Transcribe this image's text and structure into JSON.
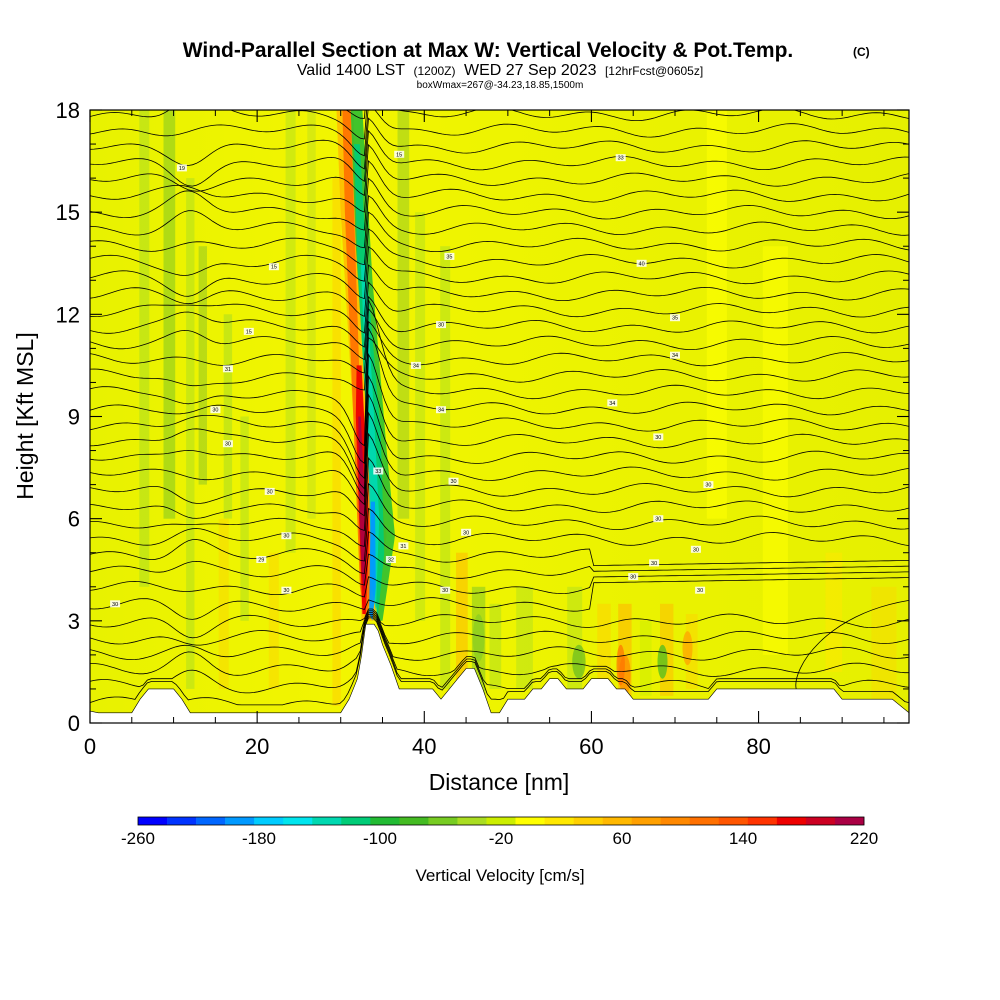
{
  "chart_data": {
    "type": "heatmap",
    "title": "Wind-Parallel Section at Max W: Vertical Velocity & Pot.Temp.",
    "title_mark": "(C)",
    "subtitle_valid": "Valid 1400 LST",
    "subtitle_utc": "(1200Z)",
    "subtitle_date": "WED 27 Sep 2023",
    "subtitle_fcst": "[12hrFcst@0605z]",
    "subtitle_box": "boxWmax=267@-34.23,18.85,1500m",
    "xlabel": "Distance [nm]",
    "ylabel": "Height [Kft MSL]",
    "xlim": [
      0,
      98
    ],
    "ylim": [
      0,
      18
    ],
    "x_ticks": [
      0,
      20,
      40,
      60,
      80
    ],
    "x_tick_labels": [
      "0",
      "20",
      "40",
      "60",
      "80"
    ],
    "y_ticks": [
      0,
      3,
      6,
      9,
      12,
      15,
      18
    ],
    "y_tick_labels": [
      "0",
      "3",
      "6",
      "9",
      "12",
      "15",
      "18"
    ],
    "colorbar": {
      "title": "Vertical Velocity [cm/s]",
      "min": -260,
      "max": 220,
      "step": 20,
      "labels": [
        "-260",
        "-180",
        "-100",
        "-20",
        "60",
        "140",
        "220"
      ],
      "colors": [
        "#0000ff",
        "#0033ff",
        "#0066ff",
        "#0099ff",
        "#00ccff",
        "#00e5ee",
        "#00d8b0",
        "#00cc77",
        "#22bb33",
        "#44bb22",
        "#77cc22",
        "#aadd22",
        "#ccee00",
        "#ffff00",
        "#ffe800",
        "#ffd000",
        "#ffb800",
        "#ffa000",
        "#ff8800",
        "#ff7000",
        "#ff5500",
        "#ff3300",
        "#ee0000",
        "#cc0022",
        "#aa0044"
      ]
    },
    "terrain_profile": [
      [
        0,
        0.35
      ],
      [
        1,
        0.3
      ],
      [
        2,
        0.3
      ],
      [
        3,
        0.3
      ],
      [
        4,
        0.3
      ],
      [
        5,
        0.3
      ],
      [
        6,
        0.7
      ],
      [
        7,
        1.0
      ],
      [
        8,
        1.0
      ],
      [
        9,
        1.0
      ],
      [
        10,
        1.0
      ],
      [
        11,
        0.7
      ],
      [
        12,
        0.3
      ],
      [
        14,
        0.3
      ],
      [
        16,
        0.3
      ],
      [
        18,
        0.3
      ],
      [
        20,
        0.3
      ],
      [
        22,
        0.3
      ],
      [
        24,
        0.3
      ],
      [
        26,
        0.3
      ],
      [
        28,
        0.3
      ],
      [
        30,
        0.3
      ],
      [
        31,
        0.7
      ],
      [
        32,
        1.3
      ],
      [
        32.5,
        2.0
      ],
      [
        33,
        2.9
      ],
      [
        34,
        2.9
      ],
      [
        34.5,
        2.7
      ],
      [
        35,
        2.3
      ],
      [
        36,
        1.7
      ],
      [
        37,
        1.0
      ],
      [
        38,
        1.0
      ],
      [
        39,
        1.0
      ],
      [
        40,
        1.0
      ],
      [
        41,
        1.0
      ],
      [
        42,
        0.7
      ],
      [
        43,
        1.0
      ],
      [
        44,
        1.3
      ],
      [
        45,
        1.6
      ],
      [
        46,
        1.6
      ],
      [
        47,
        1.0
      ],
      [
        48,
        0.3
      ],
      [
        49,
        0.3
      ],
      [
        50,
        0.7
      ],
      [
        51,
        0.7
      ],
      [
        52,
        0.7
      ],
      [
        53,
        1.0
      ],
      [
        54,
        1.0
      ],
      [
        55,
        1.3
      ],
      [
        56,
        1.3
      ],
      [
        57,
        1.0
      ],
      [
        58,
        1.0
      ],
      [
        59,
        1.0
      ],
      [
        60,
        1.3
      ],
      [
        61,
        1.3
      ],
      [
        62,
        1.3
      ],
      [
        63,
        1.0
      ],
      [
        64,
        1.0
      ],
      [
        65,
        0.7
      ],
      [
        66,
        0.7
      ],
      [
        68,
        0.7
      ],
      [
        70,
        0.7
      ],
      [
        72,
        0.7
      ],
      [
        74,
        0.7
      ],
      [
        75,
        1.0
      ],
      [
        80,
        1.0
      ],
      [
        85,
        1.0
      ],
      [
        89,
        1.0
      ],
      [
        90,
        0.7
      ],
      [
        92,
        0.7
      ],
      [
        94,
        0.7
      ],
      [
        96,
        0.7
      ],
      [
        98,
        0.3
      ]
    ],
    "contour_labels": [
      {
        "x": 11,
        "y": 16.3,
        "label": "19"
      },
      {
        "x": 22,
        "y": 13.4,
        "label": "15"
      },
      {
        "x": 19,
        "y": 11.5,
        "label": "15"
      },
      {
        "x": 16.5,
        "y": 10.4,
        "label": "31"
      },
      {
        "x": 15,
        "y": 9.2,
        "label": "30"
      },
      {
        "x": 16.5,
        "y": 8.2,
        "label": "30"
      },
      {
        "x": 21.5,
        "y": 6.8,
        "label": "30"
      },
      {
        "x": 23.5,
        "y": 5.5,
        "label": "30"
      },
      {
        "x": 20.5,
        "y": 4.8,
        "label": "29"
      },
      {
        "x": 23.5,
        "y": 3.9,
        "label": "30"
      },
      {
        "x": 3,
        "y": 3.5,
        "label": "30"
      },
      {
        "x": 37,
        "y": 16.7,
        "label": "15"
      },
      {
        "x": 43,
        "y": 13.7,
        "label": "35"
      },
      {
        "x": 42,
        "y": 11.7,
        "label": "30"
      },
      {
        "x": 39,
        "y": 10.5,
        "label": "34"
      },
      {
        "x": 42,
        "y": 9.2,
        "label": "34"
      },
      {
        "x": 34.5,
        "y": 7.4,
        "label": "33"
      },
      {
        "x": 43.5,
        "y": 7.1,
        "label": "30"
      },
      {
        "x": 45,
        "y": 5.6,
        "label": "30"
      },
      {
        "x": 37.5,
        "y": 5.2,
        "label": "31"
      },
      {
        "x": 36,
        "y": 4.8,
        "label": "32"
      },
      {
        "x": 42.5,
        "y": 3.9,
        "label": "30"
      },
      {
        "x": 63.5,
        "y": 16.6,
        "label": "33"
      },
      {
        "x": 66,
        "y": 13.5,
        "label": "40"
      },
      {
        "x": 70,
        "y": 11.9,
        "label": "35"
      },
      {
        "x": 70,
        "y": 10.8,
        "label": "34"
      },
      {
        "x": 62.5,
        "y": 9.4,
        "label": "34"
      },
      {
        "x": 68,
        "y": 8.4,
        "label": "30"
      },
      {
        "x": 74,
        "y": 7.0,
        "label": "30"
      },
      {
        "x": 68,
        "y": 6.0,
        "label": "30"
      },
      {
        "x": 72.5,
        "y": 5.1,
        "label": "30"
      },
      {
        "x": 67.5,
        "y": 4.7,
        "label": "30"
      },
      {
        "x": 65,
        "y": 4.3,
        "label": "30"
      },
      {
        "x": 73,
        "y": 3.9,
        "label": "30"
      }
    ]
  }
}
